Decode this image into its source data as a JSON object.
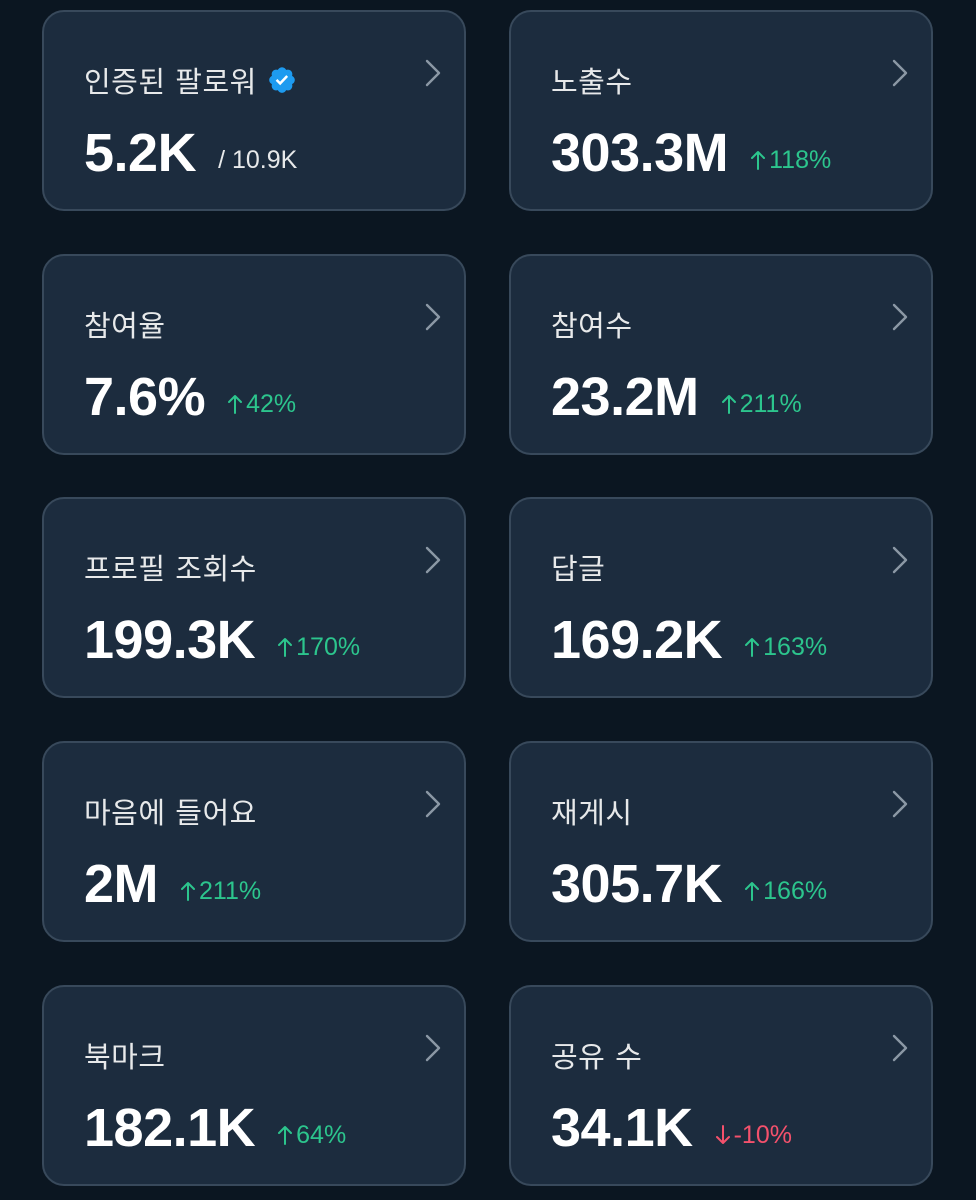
{
  "accent_up_color": "#2cc58d",
  "accent_down_color": "#f4516c",
  "verified_color": "#1d9bf0",
  "cards": [
    {
      "title": "인증된 팔로워",
      "value": "5.2K",
      "total": "/ 10.9K",
      "verified": true,
      "icon": "verified-badge-icon"
    },
    {
      "title": "노출수",
      "value": "303.3M",
      "change": "118%",
      "direction": "up",
      "icon": "arrow-up-icon"
    },
    {
      "title": "참여율",
      "value": "7.6%",
      "change": "42%",
      "direction": "up",
      "icon": "arrow-up-icon"
    },
    {
      "title": "참여수",
      "value": "23.2M",
      "change": "211%",
      "direction": "up",
      "icon": "arrow-up-icon"
    },
    {
      "title": "프로필 조회수",
      "value": "199.3K",
      "change": "170%",
      "direction": "up",
      "icon": "arrow-up-icon"
    },
    {
      "title": "답글",
      "value": "169.2K",
      "change": "163%",
      "direction": "up",
      "icon": "arrow-up-icon"
    },
    {
      "title": "마음에 들어요",
      "value": "2M",
      "change": "211%",
      "direction": "up",
      "icon": "arrow-up-icon"
    },
    {
      "title": "재게시",
      "value": "305.7K",
      "change": "166%",
      "direction": "up",
      "icon": "arrow-up-icon"
    },
    {
      "title": "북마크",
      "value": "182.1K",
      "change": "64%",
      "direction": "up",
      "icon": "arrow-up-icon"
    },
    {
      "title": "공유 수",
      "value": "34.1K",
      "change": "-10%",
      "direction": "down",
      "icon": "arrow-down-icon"
    }
  ]
}
